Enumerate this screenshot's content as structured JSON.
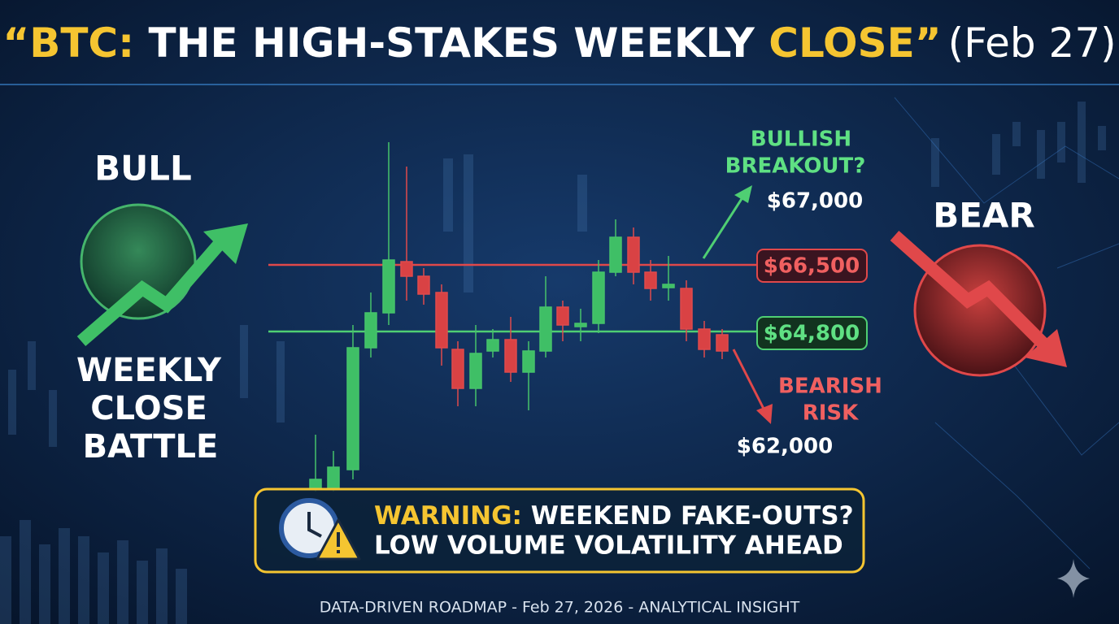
{
  "title": {
    "parts": [
      "“BTC:",
      " THE HIGH-STAKES WEEKLY ",
      "CLOSE”",
      "(Feb 27)"
    ]
  },
  "bull": {
    "label": "BULL",
    "caption": [
      "WEEKLY",
      "CLOSE",
      "BATTLE"
    ]
  },
  "bear": {
    "label": "BEAR"
  },
  "levels": {
    "resistance": "$66,500",
    "support": "$64,800"
  },
  "bullish": {
    "label": [
      "BULLISH",
      "BREAKOUT?"
    ],
    "target": "$67,000"
  },
  "bearish": {
    "label": [
      "BEARISH",
      "RISK"
    ],
    "target": "$62,000"
  },
  "warning": {
    "lead": "WARNING:",
    "line1": " WEEKEND FAKE-OUTS?",
    "line2": "LOW VOLUME VOLATILITY AHEAD"
  },
  "footer": "DATA-DRIVEN ROADMAP - Feb 27, 2026 - ANALYTICAL INSIGHT"
}
